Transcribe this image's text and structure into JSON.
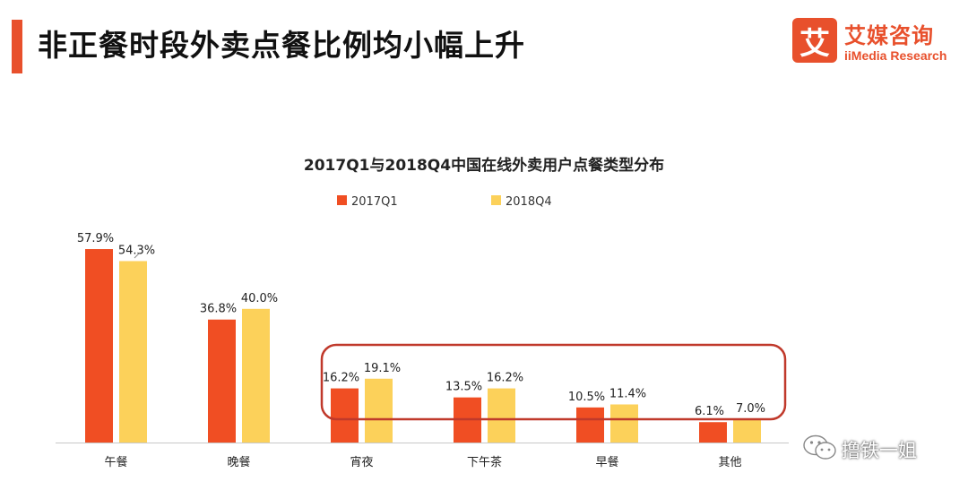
{
  "header": {
    "title": "非正餐时段外卖点餐比例均小幅上升"
  },
  "logo": {
    "icon_glyph": "艾",
    "name_cn": "艾媒咨询",
    "name_en": "iiMedia Research",
    "color": "#e8502c"
  },
  "watermark": {
    "icon": "wechat-icon",
    "text": "撸铁一姐"
  },
  "chart_data": {
    "type": "bar",
    "title": "2017Q1与2018Q4中国在线外卖用户点餐类型分布",
    "categories": [
      "午餐",
      "晚餐",
      "宵夜",
      "下午茶",
      "早餐",
      "其他"
    ],
    "series": [
      {
        "name": "2017Q1",
        "color": "#f04e23",
        "values": [
          57.9,
          36.8,
          16.2,
          13.5,
          10.5,
          6.1
        ],
        "labels": [
          "57.9%",
          "36.8%",
          "16.2%",
          "13.5%",
          "10.5%",
          "6.1%"
        ]
      },
      {
        "name": "2018Q4",
        "color": "#fcd15a",
        "values": [
          54.3,
          40.0,
          19.1,
          16.2,
          11.4,
          7.0
        ],
        "labels": [
          "54.3%",
          "40.0%",
          "19.1%",
          "16.2%",
          "11.4%",
          "7.0%"
        ]
      }
    ],
    "ylim": [
      0,
      100
    ],
    "legend": "top-center",
    "grid": false,
    "highlight": {
      "from_category": "宵夜",
      "to_category": "其他",
      "color": "#c0392b"
    }
  }
}
